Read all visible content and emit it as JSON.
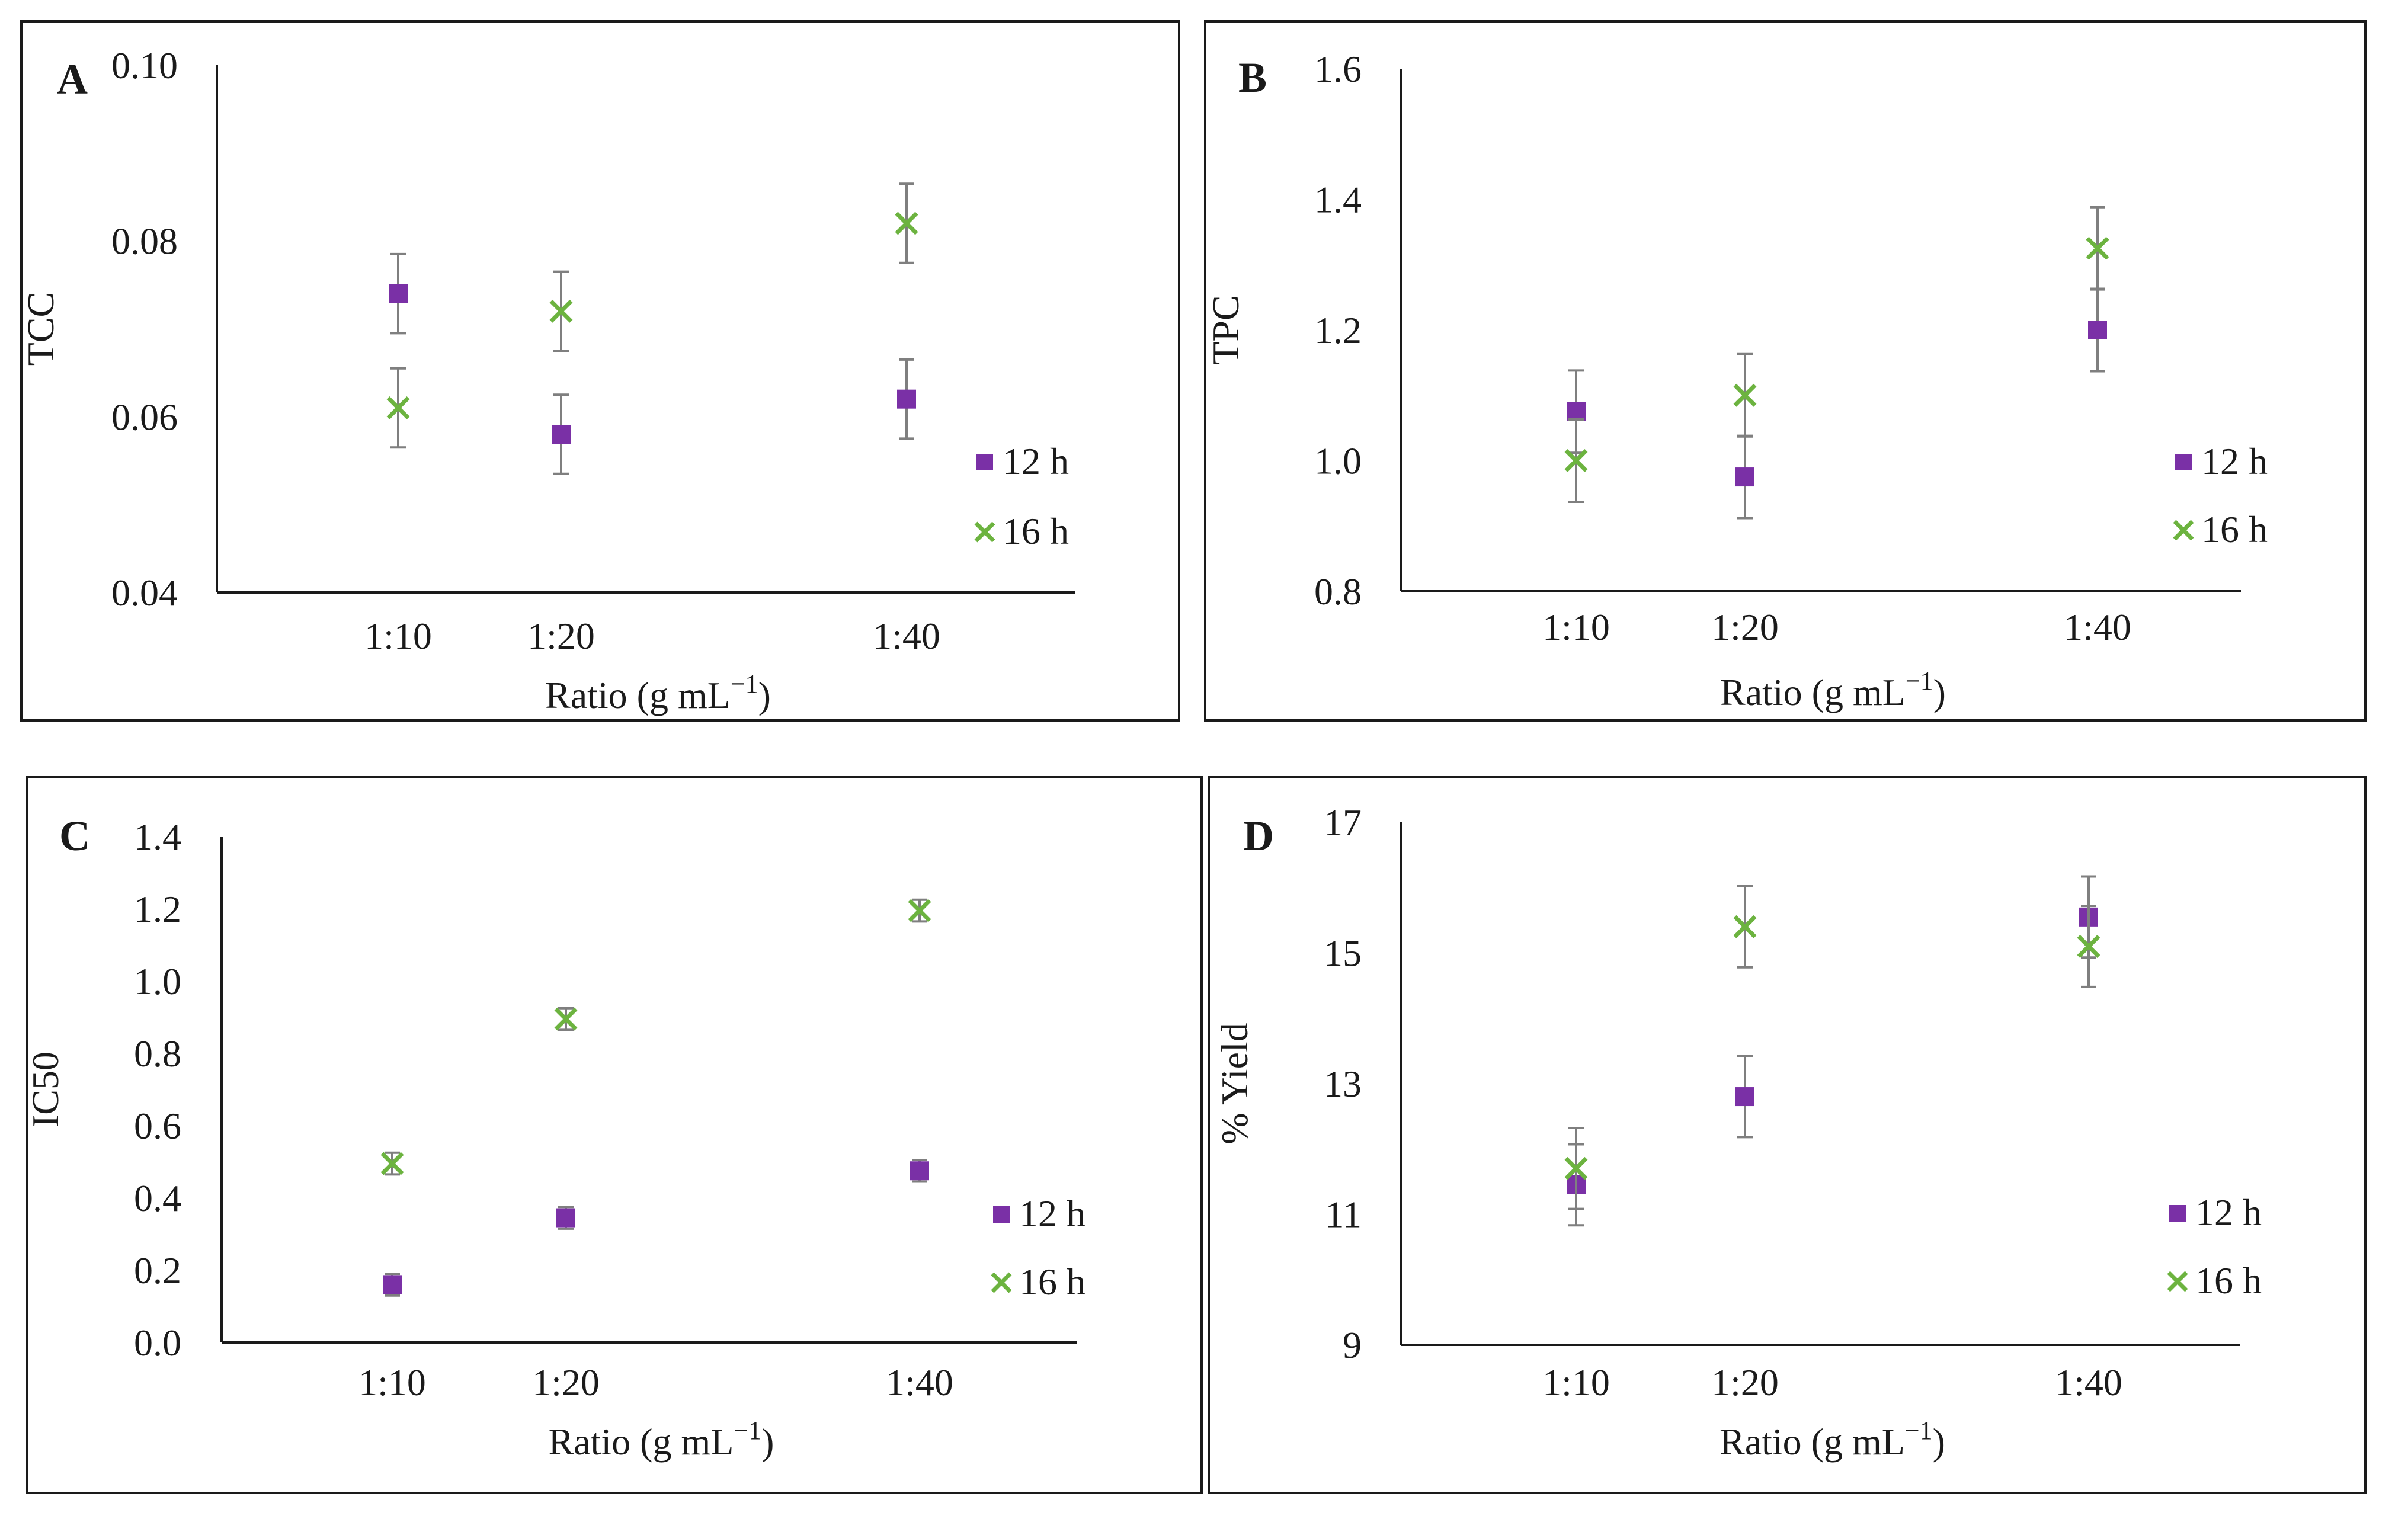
{
  "colors": {
    "series_12h": "#7a30a6",
    "series_16h": "#6cb33f",
    "axis": "#1a1a1a",
    "error_bar": "#7f7f7f",
    "frame": "#1a1a1a"
  },
  "chart_data": [
    {
      "panel_label": "A",
      "type": "scatter",
      "xlabel_main": "Ratio (g mL",
      "xlabel_sup": "−1",
      "xlabel_end": ")",
      "ylabel": "TCC",
      "categories": [
        "1:10",
        "1:20",
        "1:40"
      ],
      "x_positions": [
        10,
        20,
        40
      ],
      "ylim": [
        0.04,
        0.1
      ],
      "y_ticks": [
        0.04,
        0.06,
        0.08,
        0.1
      ],
      "y_tick_labels": [
        "0.04",
        "0.06",
        "0.08",
        "0.10"
      ],
      "legend": [
        "12 h",
        "16 h"
      ],
      "series": [
        {
          "name": "12 h",
          "marker": "square",
          "values": [
            0.074,
            0.058,
            0.062
          ],
          "errors": [
            0.0045,
            0.0045,
            0.0045
          ]
        },
        {
          "name": "16 h",
          "marker": "x",
          "values": [
            0.061,
            0.072,
            0.082
          ],
          "errors": [
            0.0045,
            0.0045,
            0.0045
          ]
        }
      ]
    },
    {
      "panel_label": "B",
      "type": "scatter",
      "xlabel_main": "Ratio (g mL",
      "xlabel_sup": "−1",
      "xlabel_end": ")",
      "ylabel": "TPC",
      "categories": [
        "1:10",
        "1:20",
        "1:40"
      ],
      "x_positions": [
        10,
        20,
        40
      ],
      "ylim": [
        0.8,
        1.6
      ],
      "y_ticks": [
        0.8,
        1.0,
        1.2,
        1.4,
        1.6
      ],
      "y_tick_labels": [
        "0.8",
        "1.0",
        "1.2",
        "1.4",
        "1.6"
      ],
      "legend": [
        "12 h",
        "16 h"
      ],
      "series": [
        {
          "name": "12 h",
          "marker": "square",
          "values": [
            1.075,
            0.975,
            1.2
          ],
          "errors": [
            0.063,
            0.063,
            0.063
          ]
        },
        {
          "name": "16 h",
          "marker": "x",
          "values": [
            1.0,
            1.1,
            1.325
          ],
          "errors": [
            0.063,
            0.063,
            0.063
          ]
        }
      ]
    },
    {
      "panel_label": "C",
      "type": "scatter",
      "xlabel_main": "Ratio (g mL",
      "xlabel_sup": "−1",
      "xlabel_end": ")",
      "ylabel": "IC50",
      "categories": [
        "1:10",
        "1:20",
        "1:40"
      ],
      "x_positions": [
        10,
        20,
        40
      ],
      "ylim": [
        0.0,
        1.4
      ],
      "y_ticks": [
        0.0,
        0.2,
        0.4,
        0.6,
        0.8,
        1.0,
        1.2,
        1.4
      ],
      "y_tick_labels": [
        "0.0",
        "0.2",
        "0.4",
        "0.6",
        "0.8",
        "1.0",
        "1.2",
        "1.4"
      ],
      "legend": [
        "12 h",
        "16 h"
      ],
      "series": [
        {
          "name": "12 h",
          "marker": "square",
          "values": [
            0.16,
            0.345,
            0.475
          ],
          "errors": [
            0.03,
            0.03,
            0.03
          ]
        },
        {
          "name": "16 h",
          "marker": "x",
          "values": [
            0.495,
            0.895,
            1.195
          ],
          "errors": [
            0.03,
            0.03,
            0.03
          ]
        }
      ]
    },
    {
      "panel_label": "D",
      "type": "scatter",
      "xlabel_main": "Ratio (g mL",
      "xlabel_sup": "−1",
      "xlabel_end": ")",
      "ylabel": "% Yield",
      "categories": [
        "1:10",
        "1:20",
        "1:40"
      ],
      "x_positions": [
        10,
        20,
        40
      ],
      "ylim": [
        9,
        17
      ],
      "y_ticks": [
        9,
        11,
        13,
        15,
        17
      ],
      "y_tick_labels": [
        "9",
        "11",
        "13",
        "15",
        "17"
      ],
      "legend": [
        "12 h",
        "16 h"
      ],
      "series": [
        {
          "name": "12 h",
          "marker": "square",
          "values": [
            11.45,
            12.8,
            15.55
          ],
          "errors": [
            0.62,
            0.62,
            0.62
          ]
        },
        {
          "name": "16 h",
          "marker": "x",
          "values": [
            11.7,
            15.4,
            15.1
          ],
          "errors": [
            0.62,
            0.62,
            0.62
          ]
        }
      ]
    }
  ]
}
